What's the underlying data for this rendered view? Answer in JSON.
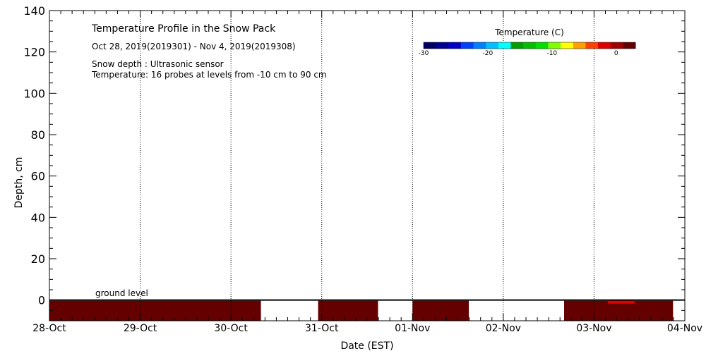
{
  "chart_data": {
    "type": "heatmap",
    "title": "Temperature Profile in the Snow Pack",
    "subtitle": "Oct 28, 2019(2019301) - Nov  4, 2019(2019308)",
    "notes": [
      "Snow depth : Ultrasonic sensor",
      "Temperature: 16 probes at levels from -10 cm to 90 cm"
    ],
    "xlabel": "Date (EST)",
    "ylabel": "Depth, cm",
    "x_tick_labels": [
      "28-Oct",
      "29-Oct",
      "30-Oct",
      "31-Oct",
      "01-Nov",
      "02-Nov",
      "03-Nov",
      "04-Nov"
    ],
    "xlim_days": [
      0,
      7
    ],
    "ylim": [
      -10,
      140
    ],
    "y_ticks": [
      0,
      20,
      40,
      60,
      80,
      100,
      120,
      140
    ],
    "y_minor_step": 5,
    "x_minor_per_day": 8,
    "grid": true,
    "ground_level_label": "ground level",
    "ground_level_value": 0,
    "colorbar": {
      "title": "Temperature (C)",
      "tick_labels": [
        "-30",
        "-20",
        "-10",
        "0"
      ],
      "tick_values": [
        -30,
        -20,
        -10,
        0
      ],
      "range": [
        -30,
        3
      ],
      "colors": [
        "#000064",
        "#000096",
        "#0000c8",
        "#0040ff",
        "#0080ff",
        "#00c0ff",
        "#00ffff",
        "#00a000",
        "#00c000",
        "#00e000",
        "#80ff00",
        "#ffff00",
        "#ffa000",
        "#ff4000",
        "#e00000",
        "#a00000",
        "#640000"
      ]
    },
    "series": [
      {
        "values_description": "temperature bands near ground level (depth -10 to 0 cm)",
        "segments": [
          {
            "start_day": 0.0,
            "end_day": 2.33,
            "temperature": 2
          },
          {
            "start_day": 2.96,
            "end_day": 3.62,
            "temperature": 2
          },
          {
            "start_day": 4.0,
            "end_day": 4.62,
            "temperature": 2
          },
          {
            "start_day": 5.67,
            "end_day": 6.87,
            "temperature": 2
          }
        ],
        "hot_spot": {
          "start_day": 6.15,
          "end_day": 6.45,
          "temperature": 1
        }
      }
    ]
  }
}
